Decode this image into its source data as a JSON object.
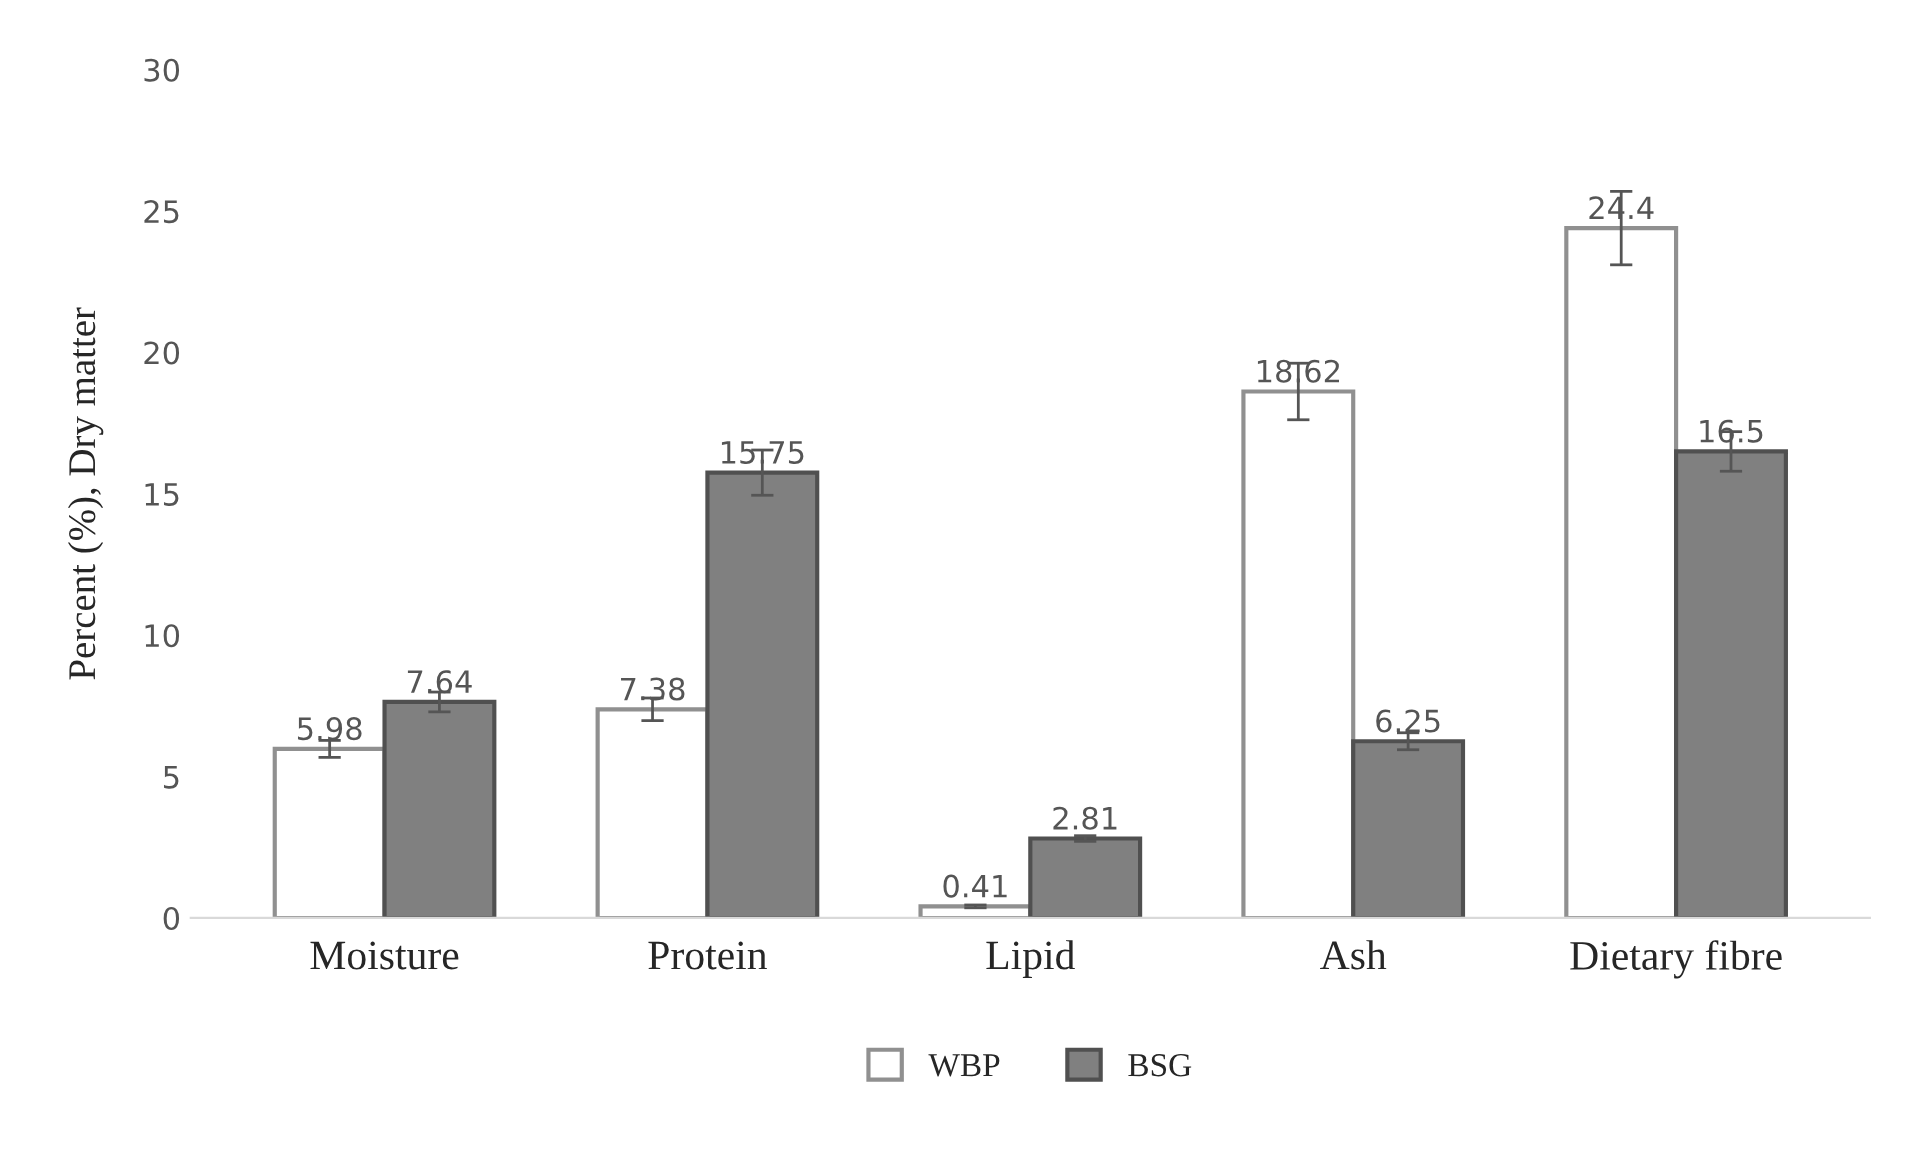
{
  "chart_data": {
    "type": "bar",
    "ylabel": "Percent (%), Dry matter",
    "categories": [
      "Moisture",
      "Protein",
      "Lipid",
      "Ash",
      "Dietary fibre"
    ],
    "series": [
      {
        "name": "WBP",
        "color": "#ffffff",
        "values": [
          5.98,
          7.38,
          0.41,
          18.62,
          24.4
        ],
        "errors": [
          0.3,
          0.4,
          0.05,
          1.0,
          1.3
        ]
      },
      {
        "name": "BSG",
        "color": "#808080",
        "values": [
          7.64,
          15.75,
          2.81,
          6.25,
          16.5
        ],
        "errors": [
          0.35,
          0.8,
          0.1,
          0.3,
          0.7
        ]
      }
    ],
    "ylim": [
      0,
      30
    ],
    "yticks": [
      0,
      5,
      10,
      15,
      20,
      25,
      30
    ],
    "data_labels": true,
    "grid": false,
    "legend": "bottom"
  }
}
